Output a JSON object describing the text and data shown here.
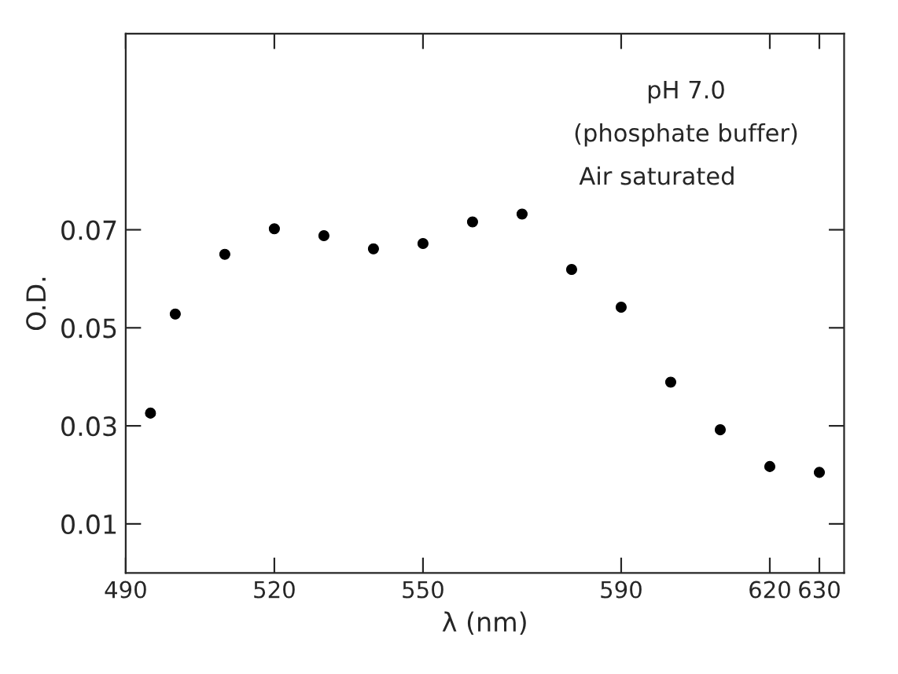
{
  "chart_data": {
    "type": "scatter",
    "xlabel": "λ (nm)",
    "ylabel": "O.D.",
    "annotations": [
      "pH 7.0",
      "(phosphate buffer)",
      "Air saturated"
    ],
    "x": [
      495,
      500,
      510,
      520,
      530,
      540,
      550,
      560,
      570,
      580,
      590,
      600,
      610,
      620,
      630
    ],
    "series": [
      {
        "color": "#000000",
        "values": [
          0.0326,
          0.0528,
          0.065,
          0.0702,
          0.0688,
          0.0661,
          0.0672,
          0.0716,
          0.0732,
          0.0619,
          0.0542,
          0.0389,
          0.0292,
          0.0217,
          0.0205
        ]
      }
    ],
    "xlim": [
      490,
      635
    ],
    "ylim": [
      0,
      0.11
    ],
    "xticks": [
      490,
      520,
      550,
      590,
      620,
      630
    ],
    "yticks": [
      {
        "value": 0.01,
        "label": "0.01"
      },
      {
        "value": 0.03,
        "label": "0.03"
      },
      {
        "value": 0.05,
        "label": "0.05"
      },
      {
        "value": 0.07,
        "label": "0.07"
      }
    ],
    "marker": "circle",
    "grid": false,
    "legend": false
  }
}
